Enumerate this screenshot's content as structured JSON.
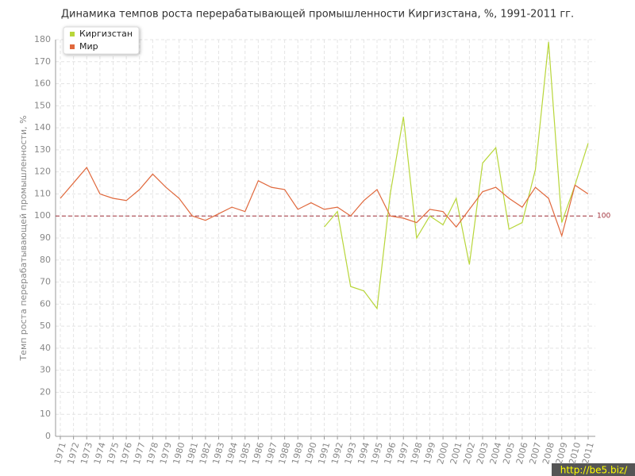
{
  "chart_data": {
    "type": "line",
    "title": "Динамика темпов роста перерабатывающей промышленности Киргизстана, %, 1991-2011 гг.",
    "y_label": "Темп роста перерабатывающей промышленности, %",
    "categories": [
      "1971",
      "1972",
      "1973",
      "1974",
      "1975",
      "1976",
      "1977",
      "1978",
      "1979",
      "1980",
      "1981",
      "1982",
      "1983",
      "1984",
      "1985",
      "1986",
      "1987",
      "1988",
      "1989",
      "1990",
      "1991",
      "1992",
      "1993",
      "1994",
      "1995",
      "1996",
      "1997",
      "1998",
      "1999",
      "2000",
      "2001",
      "2002",
      "2003",
      "2004",
      "2005",
      "2006",
      "2007",
      "2008",
      "2009",
      "2010",
      "2011"
    ],
    "series": [
      {
        "name": "Киргизстан",
        "color": "#b8d63a",
        "values": [
          null,
          null,
          null,
          null,
          null,
          null,
          null,
          null,
          null,
          null,
          null,
          null,
          null,
          null,
          null,
          null,
          null,
          null,
          null,
          null,
          95,
          102,
          68,
          66,
          58,
          110,
          145,
          90,
          100,
          96,
          108,
          78,
          124,
          131,
          94,
          97,
          121,
          179,
          97,
          114,
          133
        ]
      },
      {
        "name": "Мир",
        "color": "#e0683c",
        "values": [
          108,
          115,
          122,
          110,
          108,
          107,
          112,
          119,
          113,
          108,
          100,
          98,
          101,
          104,
          102,
          116,
          113,
          112,
          103,
          106,
          103,
          104,
          100,
          107,
          112,
          100,
          99,
          97,
          103,
          102,
          95,
          103,
          111,
          113,
          108,
          104,
          113,
          108,
          91,
          114,
          110
        ]
      }
    ],
    "reference_line": 100,
    "reference_color": "#a0303a",
    "ylim": [
      0,
      180
    ],
    "yticks": [
      0,
      10,
      20,
      30,
      40,
      50,
      60,
      70,
      80,
      90,
      100,
      110,
      120,
      130,
      140,
      150,
      160,
      170,
      180
    ],
    "grid": true,
    "legend": "top-left",
    "watermark": "http://be5.biz/"
  }
}
